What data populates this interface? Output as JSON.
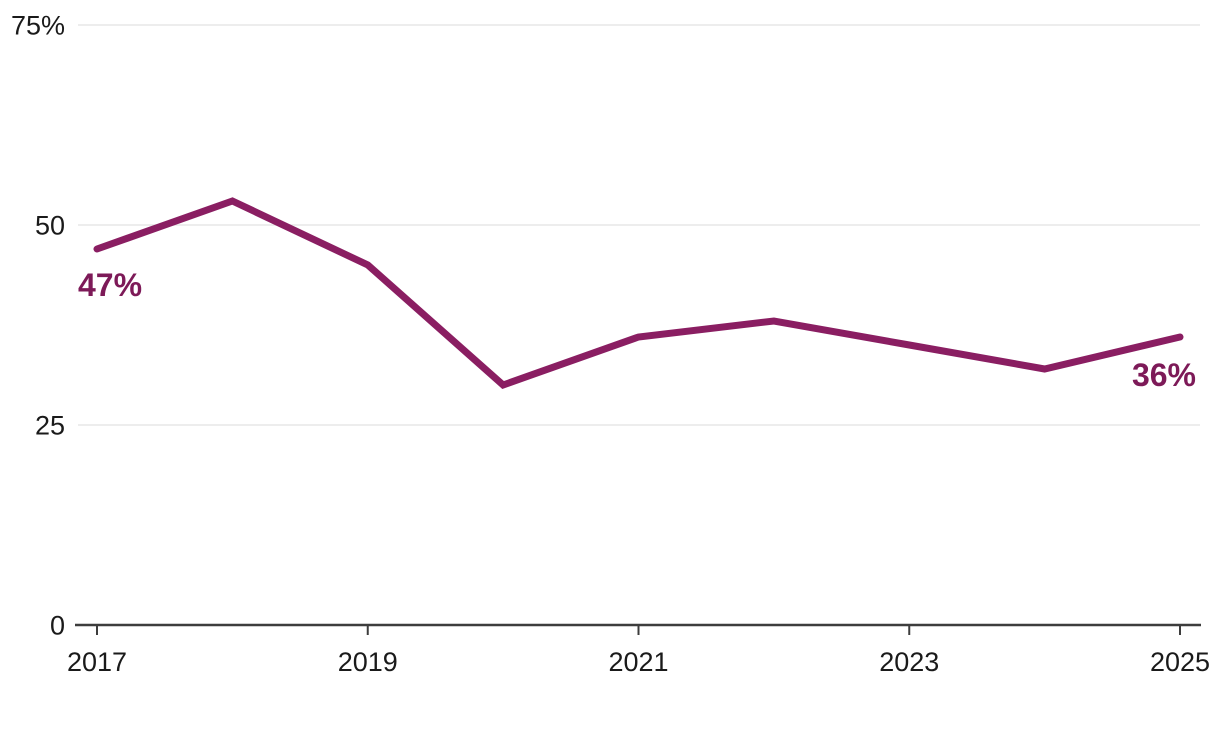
{
  "chart_data": {
    "type": "line",
    "x": [
      2017,
      2018,
      2019,
      2020,
      2021,
      2022,
      2023,
      2024,
      2025
    ],
    "series": [
      {
        "name": "percent",
        "values": [
          47,
          53,
          45,
          30,
          36,
          38,
          35,
          32,
          36
        ]
      }
    ],
    "title": "",
    "xlabel": "",
    "ylabel": "",
    "ylim": [
      0,
      75
    ],
    "xlim": [
      2017,
      2025
    ],
    "y_ticks": [
      {
        "value": 75,
        "label": "75%"
      },
      {
        "value": 50,
        "label": "50"
      },
      {
        "value": 25,
        "label": "25"
      },
      {
        "value": 0,
        "label": "0"
      }
    ],
    "x_ticks": [
      {
        "value": 2017,
        "label": "2017"
      },
      {
        "value": 2019,
        "label": "2019"
      },
      {
        "value": 2021,
        "label": "2021"
      },
      {
        "value": 2023,
        "label": "2023"
      },
      {
        "value": 2025,
        "label": "2025"
      }
    ],
    "grid": "horizontal-only",
    "legend_position": "none",
    "annotations": [
      {
        "text": "47%",
        "point_index": 0,
        "position": "below-left"
      },
      {
        "text": "36%",
        "point_index": 8,
        "position": "below-right"
      }
    ],
    "colors": {
      "line": "#8a1e62",
      "annotation_text": "#7d1a58",
      "tick_label": "#1a1a1a",
      "axis_line": "#3d3d3d",
      "gridline": "#e7e7e7",
      "background": "#ffffff"
    }
  }
}
